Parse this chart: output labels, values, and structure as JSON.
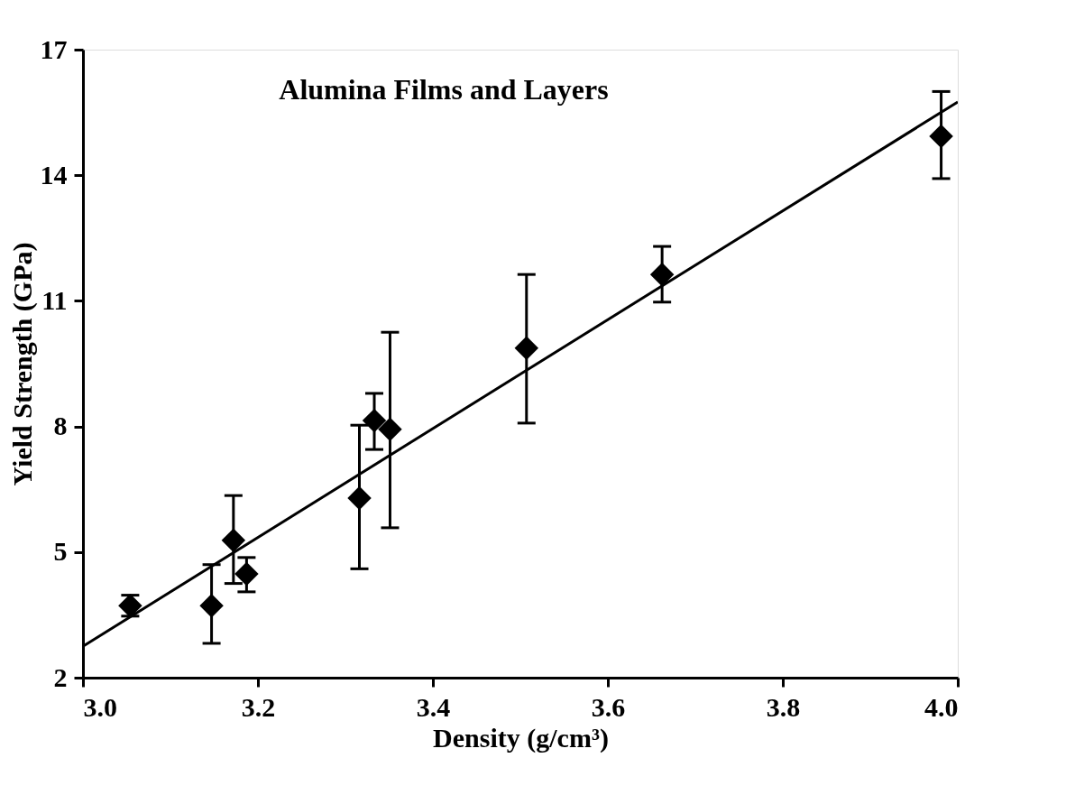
{
  "chart_data": {
    "type": "scatter",
    "title": "Alumina Films and Layers",
    "xlabel": "Density (g/cm³)",
    "ylabel": "Yield Strength (GPa)",
    "xlim": [
      3.0,
      4.0
    ],
    "ylim": [
      2,
      17
    ],
    "xticks": [
      {
        "value": 3.0,
        "label": "3.0"
      },
      {
        "value": 3.2,
        "label": "3.2"
      },
      {
        "value": 3.4,
        "label": "3.4"
      },
      {
        "value": 3.6,
        "label": "3.6"
      },
      {
        "value": 3.8,
        "label": "3.8"
      },
      {
        "value": 4.0,
        "label": "4.0"
      }
    ],
    "yticks": [
      2,
      5,
      8,
      11,
      14,
      17
    ],
    "grid": false,
    "series": [
      {
        "color": "#000000",
        "marker": "diamond",
        "x": [
          3.054,
          3.147,
          3.172,
          3.187,
          3.316,
          3.333,
          3.351,
          3.507,
          3.662,
          3.981
        ],
        "values": [
          3.72,
          3.72,
          5.28,
          4.48,
          6.29,
          8.14,
          7.93,
          9.87,
          11.63,
          14.93
        ],
        "errors": [
          [
            3.47,
            3.97
          ],
          [
            2.82,
            4.7
          ],
          [
            4.25,
            6.35
          ],
          [
            4.05,
            4.87
          ],
          [
            4.6,
            8.03
          ],
          [
            7.45,
            8.79
          ],
          [
            5.58,
            10.25
          ],
          [
            8.08,
            11.63
          ],
          [
            10.97,
            12.3
          ],
          [
            13.92,
            16.0
          ]
        ]
      },
      {
        "type": "line",
        "color": "#000000",
        "line_style": "solid",
        "x": [
          3.0,
          4.0
        ],
        "values": [
          2.75,
          15.75
        ]
      }
    ]
  }
}
